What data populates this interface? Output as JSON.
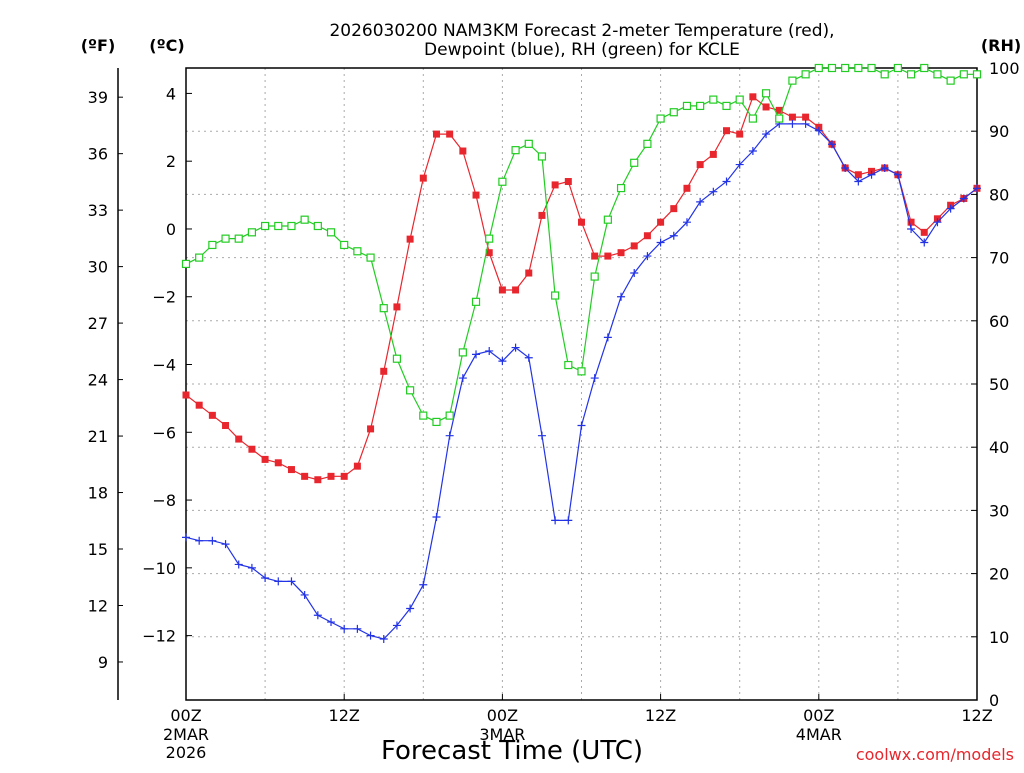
{
  "chart_data": {
    "type": "line",
    "title_line1": "2026030200 NAM3KM Forecast 2-meter Temperature (red),",
    "title_line2": "Dewpoint (blue), RH (green) for KCLE",
    "unit_f": "(ºF)",
    "unit_c": "(ºC)",
    "unit_rh": "(RH)",
    "xlabel": "Forecast Time (UTC)",
    "credit": "coolwx.com/models",
    "x_range_hours": [
      0,
      60
    ],
    "ylim_c": [
      -13.9,
      4.75
    ],
    "ylim_rh": [
      0,
      100
    ],
    "y_ticks_c": [
      "4",
      "2",
      "0",
      "−2",
      "−4",
      "−6",
      "−8",
      "−10",
      "−12"
    ],
    "y_ticks_f": [
      "39",
      "36",
      "33",
      "30",
      "27",
      "24",
      "21",
      "18",
      "15",
      "12",
      "9"
    ],
    "y_ticks_rh": [
      "100",
      "90",
      "80",
      "70",
      "60",
      "50",
      "40",
      "30",
      "20",
      "10",
      "0"
    ],
    "x_ticks": [
      {
        "label": "00Z",
        "sub1": "2MAR",
        "sub2": "2026"
      },
      {
        "label": "12Z",
        "sub1": "",
        "sub2": ""
      },
      {
        "label": "00Z",
        "sub1": "3MAR",
        "sub2": ""
      },
      {
        "label": "12Z",
        "sub1": "",
        "sub2": ""
      },
      {
        "label": "00Z",
        "sub1": "4MAR",
        "sub2": ""
      },
      {
        "label": "12Z",
        "sub1": "",
        "sub2": ""
      }
    ],
    "series": [
      {
        "name": "2-meter Temperature (°C)",
        "color": "#e8262d",
        "marker": "filled-square",
        "axis": "celsius",
        "x": [
          0,
          1,
          2,
          3,
          4,
          5,
          6,
          7,
          8,
          9,
          10,
          11,
          12,
          13,
          14,
          15,
          16,
          17,
          18,
          19,
          20,
          21,
          22,
          23,
          24,
          25,
          26,
          27,
          28,
          29,
          30,
          31,
          32,
          33,
          34,
          35,
          36,
          37,
          38,
          39,
          40,
          41,
          42,
          43,
          44,
          45,
          46,
          47,
          48,
          49,
          50,
          51,
          52,
          53,
          54,
          55,
          56,
          57,
          58,
          59,
          60
        ],
        "values": [
          -4.9,
          -5.2,
          -5.5,
          -5.8,
          -6.2,
          -6.5,
          -6.8,
          -6.9,
          -7.1,
          -7.3,
          -7.4,
          -7.3,
          -7.3,
          -7.0,
          -5.9,
          -4.2,
          -2.3,
          -0.3,
          1.5,
          2.8,
          2.8,
          2.3,
          1.0,
          -0.7,
          -1.8,
          -1.8,
          -1.3,
          0.4,
          1.3,
          1.4,
          0.2,
          -0.8,
          -0.8,
          -0.7,
          -0.5,
          -0.2,
          0.2,
          0.6,
          1.2,
          1.9,
          2.2,
          2.9,
          2.8,
          3.9,
          3.6,
          3.5,
          3.3,
          3.3,
          3.0,
          2.5,
          1.8,
          1.6,
          1.7,
          1.8,
          1.6,
          0.2,
          -0.1,
          0.3,
          0.7,
          0.9,
          1.2
        ]
      },
      {
        "name": "Dewpoint (°C)",
        "color": "#2233e6",
        "marker": "plus",
        "axis": "celsius",
        "x": [
          0,
          1,
          2,
          3,
          4,
          5,
          6,
          7,
          8,
          9,
          10,
          11,
          12,
          13,
          14,
          15,
          16,
          17,
          18,
          19,
          20,
          21,
          22,
          23,
          24,
          25,
          26,
          27,
          28,
          29,
          30,
          31,
          32,
          33,
          34,
          35,
          36,
          37,
          38,
          39,
          40,
          41,
          42,
          43,
          44,
          45,
          46,
          47,
          48,
          49,
          50,
          51,
          52,
          53,
          54,
          55,
          56,
          57,
          58,
          59,
          60
        ],
        "values": [
          -9.1,
          -9.2,
          -9.2,
          -9.3,
          -9.9,
          -10.0,
          -10.3,
          -10.4,
          -10.4,
          -10.8,
          -11.4,
          -11.6,
          -11.8,
          -11.8,
          -12.0,
          -12.1,
          -11.7,
          -11.2,
          -10.5,
          -8.5,
          -6.1,
          -4.4,
          -3.7,
          -3.6,
          -3.9,
          -3.5,
          -3.8,
          -6.1,
          -8.6,
          -8.6,
          -5.8,
          -4.4,
          -3.2,
          -2.0,
          -1.3,
          -0.8,
          -0.4,
          -0.2,
          0.2,
          0.8,
          1.1,
          1.4,
          1.9,
          2.3,
          2.8,
          3.1,
          3.1,
          3.1,
          2.9,
          2.5,
          1.8,
          1.4,
          1.6,
          1.8,
          1.6,
          0.0,
          -0.4,
          0.2,
          0.6,
          0.9,
          1.2
        ]
      },
      {
        "name": "Relative Humidity (%)",
        "color": "#22cc22",
        "marker": "open-square",
        "axis": "rh",
        "x": [
          0,
          1,
          2,
          3,
          4,
          5,
          6,
          7,
          8,
          9,
          10,
          11,
          12,
          13,
          14,
          15,
          16,
          17,
          18,
          19,
          20,
          21,
          22,
          23,
          24,
          25,
          26,
          27,
          28,
          29,
          30,
          31,
          32,
          33,
          34,
          35,
          36,
          37,
          38,
          39,
          40,
          41,
          42,
          43,
          44,
          45,
          46,
          47,
          48,
          49,
          50,
          51,
          52,
          53,
          54,
          55,
          56,
          57,
          58,
          59,
          60
        ],
        "values": [
          69,
          70,
          72,
          73,
          73,
          74,
          75,
          75,
          75,
          76,
          75,
          74,
          72,
          71,
          70,
          62,
          54,
          49,
          45,
          44,
          45,
          55,
          63,
          73,
          82,
          87,
          88,
          86,
          64,
          53,
          52,
          67,
          76,
          81,
          85,
          88,
          92,
          93,
          94,
          94,
          95,
          94,
          95,
          92,
          96,
          92,
          98,
          99,
          100,
          100,
          100,
          100,
          100,
          99,
          100,
          99,
          100,
          99,
          98,
          99,
          99
        ]
      }
    ]
  }
}
